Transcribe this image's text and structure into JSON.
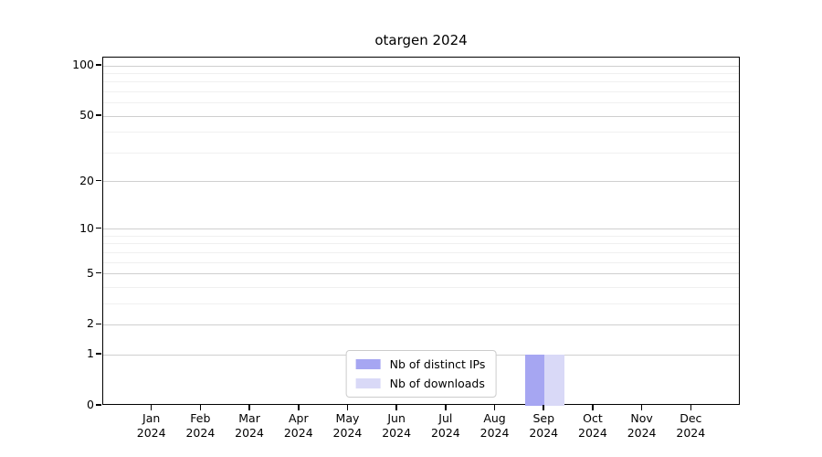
{
  "chart_data": {
    "type": "bar",
    "title": "otargen 2024",
    "categories": [
      "Jan 2024",
      "Feb 2024",
      "Mar 2024",
      "Apr 2024",
      "May 2024",
      "Jun 2024",
      "Jul 2024",
      "Aug 2024",
      "Sep 2024",
      "Oct 2024",
      "Nov 2024",
      "Dec 2024"
    ],
    "series": [
      {
        "name": "Nb of distinct IPs",
        "color": "#a6a6f2",
        "values": [
          0,
          0,
          0,
          0,
          0,
          0,
          0,
          0,
          1,
          0,
          0,
          0
        ]
      },
      {
        "name": "Nb of downloads",
        "color": "#d9d9f7",
        "values": [
          0,
          0,
          0,
          0,
          0,
          0,
          0,
          0,
          1,
          0,
          0,
          0
        ]
      }
    ],
    "yscale": "log1p",
    "yticks": [
      0,
      1,
      2,
      5,
      10,
      20,
      50,
      100
    ],
    "minor_grid_values": [
      3,
      4,
      6,
      7,
      8,
      9,
      30,
      40,
      60,
      70,
      80,
      90
    ],
    "ylim": [
      0,
      112
    ],
    "xlim": [
      -1,
      12
    ],
    "bar_width": 0.4,
    "grid": true,
    "legend_position": "lower center",
    "colors": {
      "major_grid": "#cfcfcf",
      "minor_grid": "#f0f0f0",
      "spine": "#000000"
    }
  }
}
